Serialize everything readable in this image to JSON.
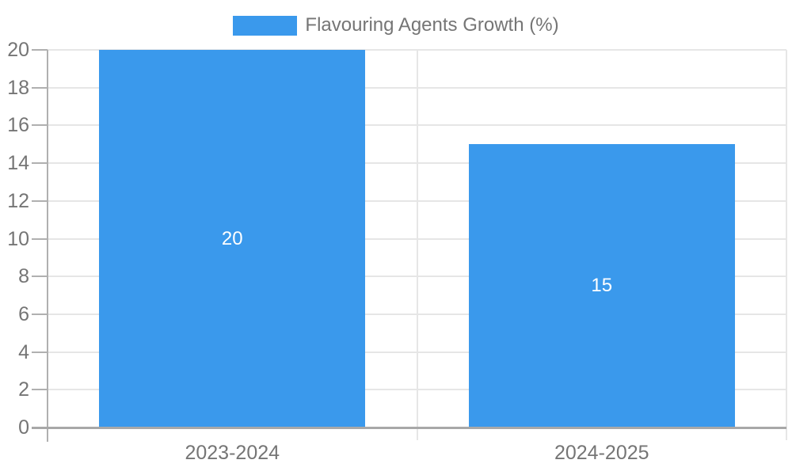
{
  "chart_data": {
    "type": "bar",
    "title": "",
    "legend": {
      "label": "Flavouring Agents Growth (%)",
      "position": "top"
    },
    "categories": [
      "2023-2024",
      "2024-2025"
    ],
    "series": [
      {
        "name": "Flavouring Agents Growth (%)",
        "values": [
          20,
          15
        ]
      }
    ],
    "bar_value_labels": [
      "20",
      "15"
    ],
    "xlabel": "",
    "ylabel": "",
    "ylim": [
      0,
      20
    ],
    "yticks": [
      0,
      2,
      4,
      6,
      8,
      10,
      12,
      14,
      16,
      18,
      20
    ],
    "grid": true,
    "colors": {
      "bar": "#3a99ec",
      "value_label": "#ffffff",
      "axis_text": "#757575",
      "legend_text": "#757575",
      "gridline": "#e6e6e6",
      "category_divider": "#e6e6e6",
      "axis_line": "#b0b0b0",
      "baseline": "#a8a8a8",
      "background": "#ffffff"
    }
  }
}
